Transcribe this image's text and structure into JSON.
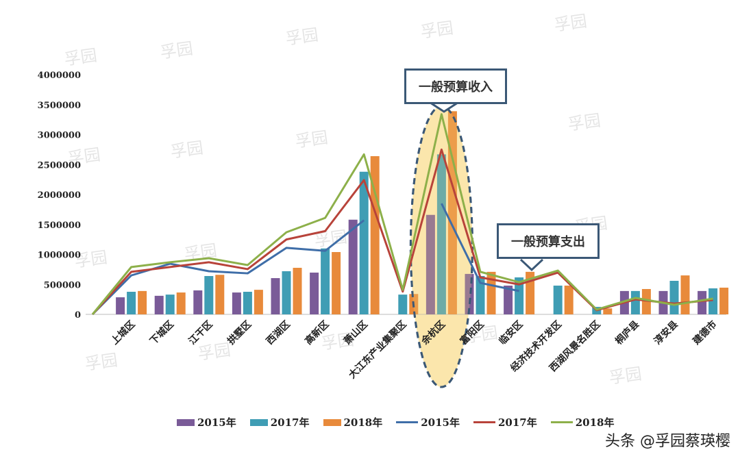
{
  "chart_data": {
    "type": "bar+line",
    "title": "",
    "xlabel": "",
    "ylabel": "",
    "ylim": [
      0,
      4000000
    ],
    "yticks": [
      "0",
      "500000",
      "1000000",
      "1500000",
      "2000000",
      "2500000",
      "3000000",
      "3500000",
      "4000000"
    ],
    "categories": [
      "上城区",
      "下城区",
      "江干区",
      "拱墅区",
      "西湖区",
      "高新区",
      "萧山区",
      "大江东产业集聚区",
      "余杭区",
      "富阳区",
      "临安区",
      "经济技术开发区",
      "西湖风景名胜区",
      "桐庐县",
      "淳安县",
      "建德市"
    ],
    "bar_series": [
      {
        "name": "2015年",
        "color": "#7a5b98",
        "values": [
          285000,
          310000,
          400000,
          365000,
          605000,
          697000,
          1580000,
          null,
          1660000,
          675000,
          480000,
          null,
          null,
          390000,
          390000,
          390000
        ]
      },
      {
        "name": "2017年",
        "color": "#3f9db4",
        "values": [
          377000,
          330000,
          640000,
          377000,
          720000,
          1100000,
          2380000,
          330000,
          2670000,
          640000,
          617000,
          480000,
          125000,
          390000,
          560000,
          434000
        ]
      },
      {
        "name": "2018年",
        "color": "#e88a3b",
        "values": [
          390000,
          365000,
          660000,
          410000,
          777000,
          1040000,
          2640000,
          340000,
          3390000,
          710000,
          710000,
          480000,
          100000,
          423000,
          650000,
          446000
        ]
      }
    ],
    "line_series": [
      {
        "name": "2015年",
        "color": "#3f6ea8",
        "start": 0,
        "values": [
          650000,
          845000,
          720000,
          685000,
          1110000,
          1060000,
          1570000,
          null,
          1850000,
          525000,
          390000,
          null,
          null,
          null,
          null,
          null
        ]
      },
      {
        "name": "2017年",
        "color": "#b8433a",
        "start": 0,
        "values": [
          710000,
          790000,
          870000,
          755000,
          1250000,
          1390000,
          2240000,
          380000,
          2750000,
          617000,
          500000,
          697000,
          69000,
          250000,
          180000,
          240000
        ]
      },
      {
        "name": "2018年",
        "color": "#8db04a",
        "start": 0,
        "values": [
          790000,
          870000,
          937000,
          823000,
          1370000,
          1610000,
          2670000,
          410000,
          3340000,
          710000,
          537000,
          731000,
          80000,
          274000,
          160000,
          263000
        ]
      }
    ],
    "legend_position": "bottom",
    "grid": false,
    "annotations": {
      "revenue_callout": "一般预算收入",
      "expenditure_callout": "一般预算支出",
      "highlight_category": "余杭区"
    }
  },
  "watermark": "孚园",
  "signature": "头条 @孚园蔡瑛樱"
}
